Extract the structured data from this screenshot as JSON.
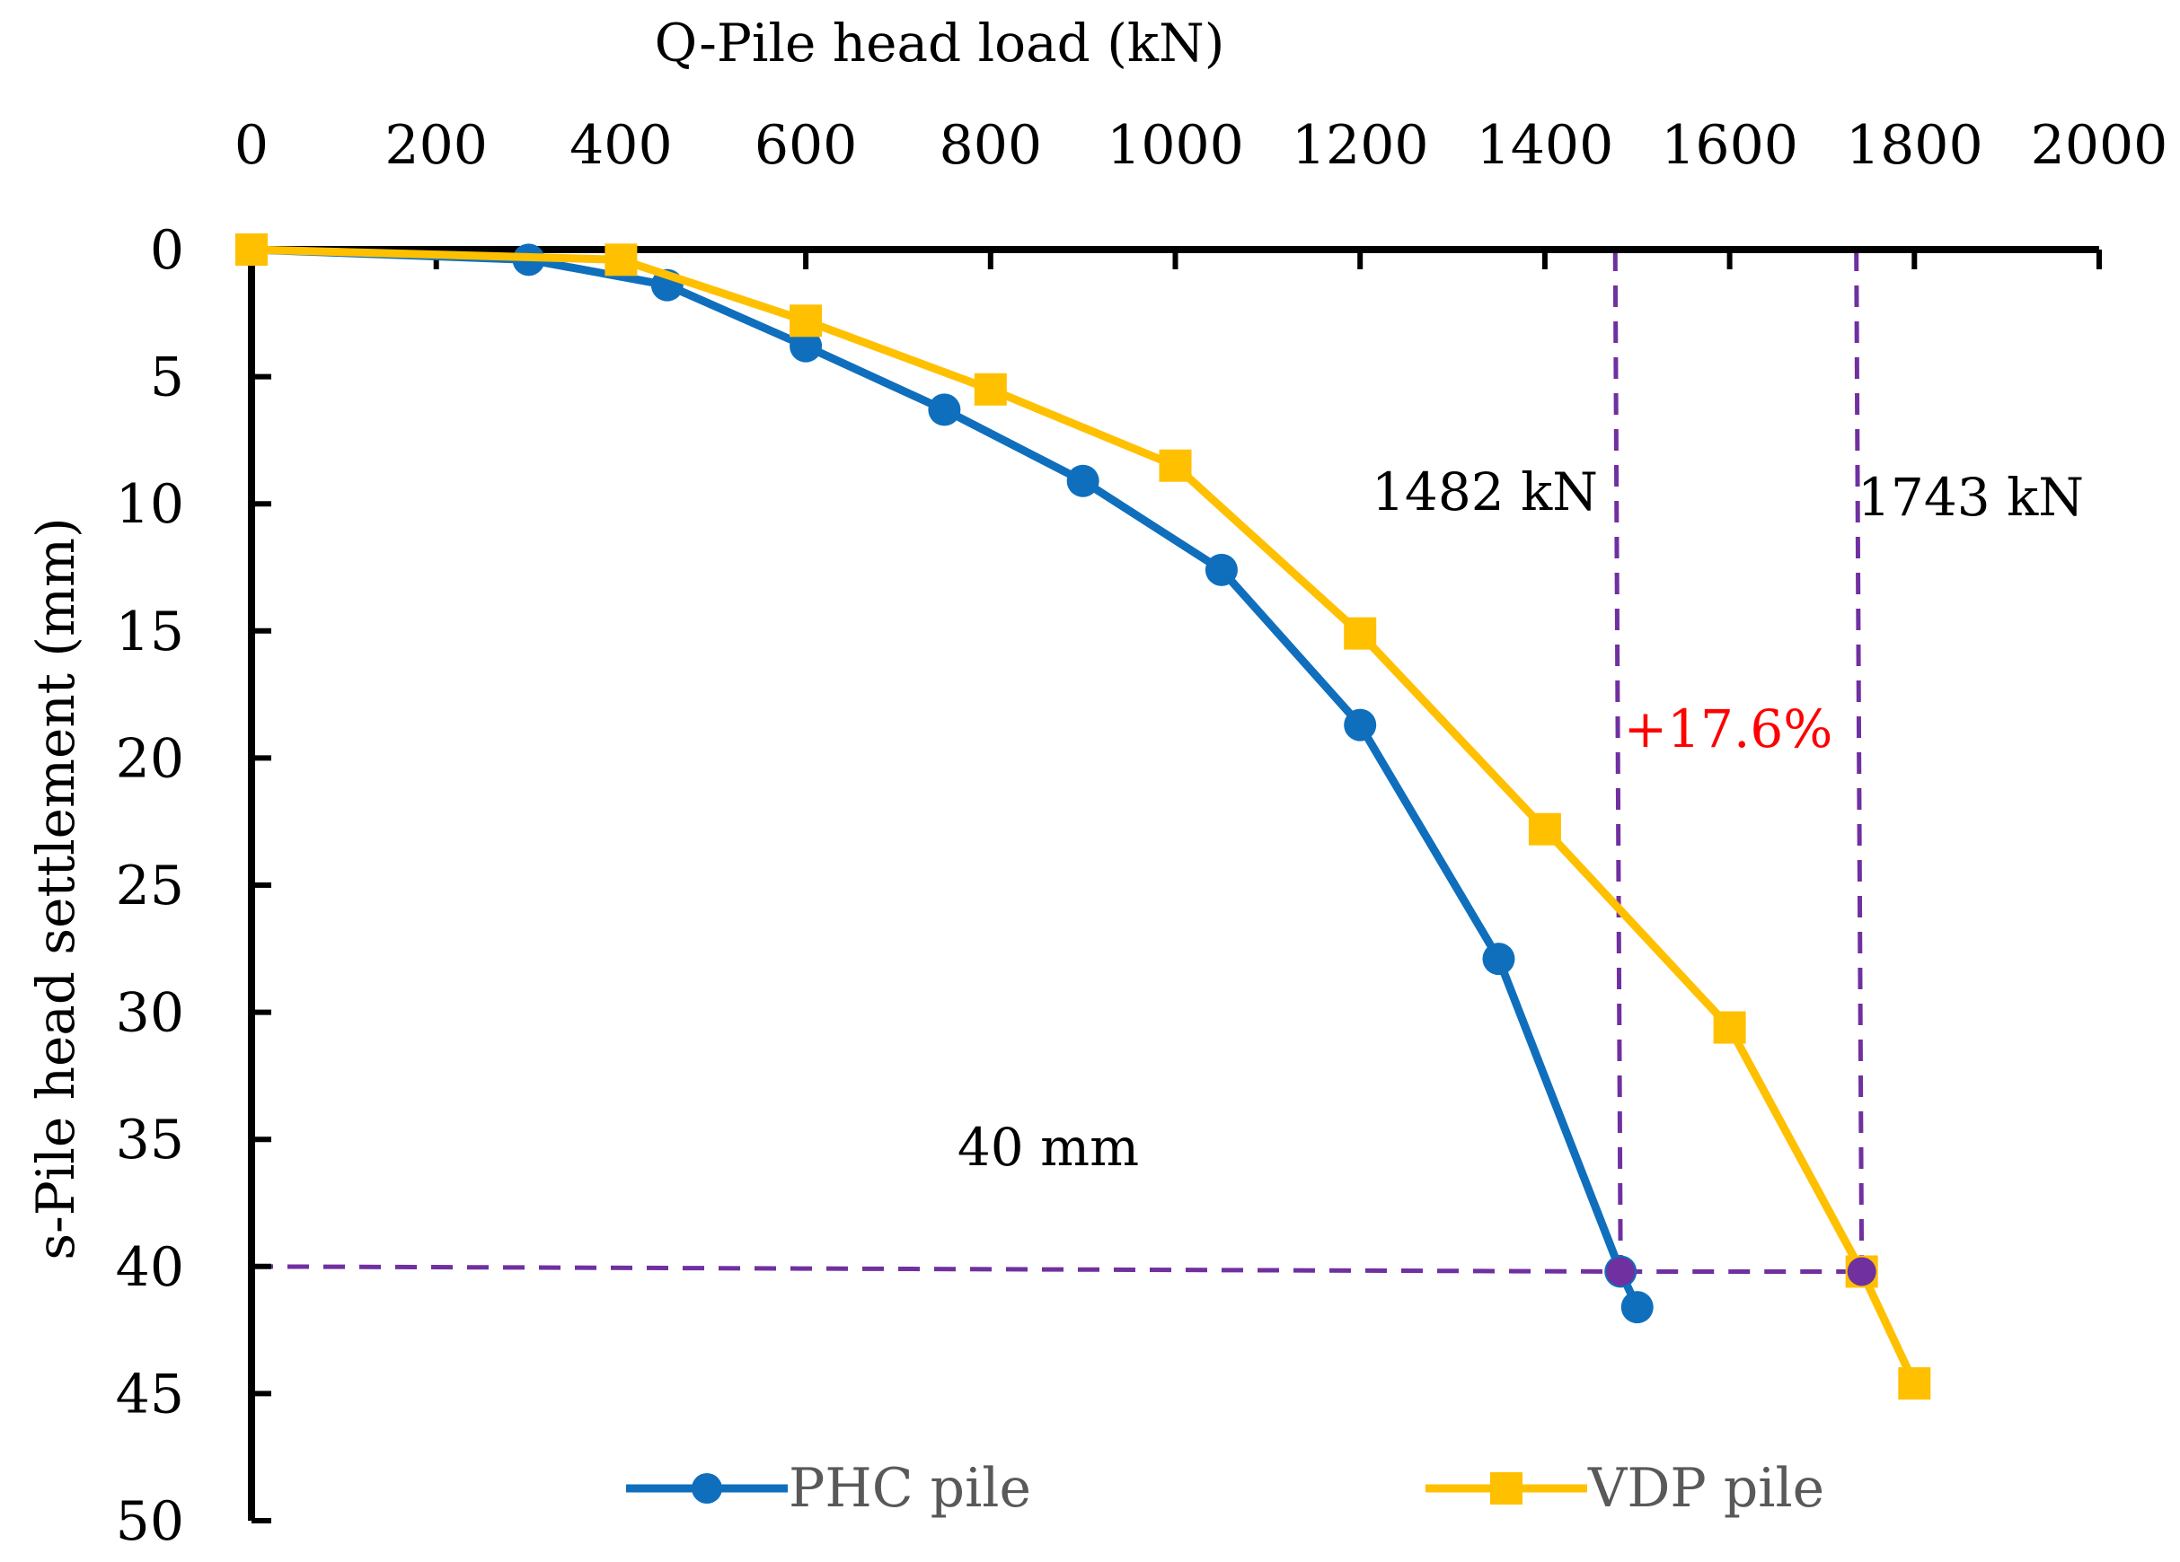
{
  "chart_data": {
    "type": "line",
    "x_axis_title": "Q-Pile head load (kN)",
    "y_axis_title": "s-Pile head settlement (mm)",
    "x_range": [
      0,
      2000
    ],
    "y_range": [
      0,
      50
    ],
    "y_inverted": true,
    "x_axis_position": "top",
    "x_ticks": [
      0,
      200,
      400,
      600,
      800,
      1000,
      1200,
      1400,
      1600,
      1800,
      2000
    ],
    "y_ticks": [
      0,
      5,
      10,
      15,
      20,
      25,
      30,
      35,
      40,
      45,
      50
    ],
    "grid": false,
    "legend_position": "bottom",
    "series": [
      {
        "name": "PHC pile",
        "color": "#0f6fbd",
        "marker": "circle",
        "points": [
          [
            0,
            0
          ],
          [
            300,
            0.4
          ],
          [
            450,
            1.4
          ],
          [
            600,
            3.8
          ],
          [
            750,
            6.3
          ],
          [
            900,
            9.1
          ],
          [
            1050,
            12.6
          ],
          [
            1200,
            18.7
          ],
          [
            1350,
            27.9
          ],
          [
            1482,
            40.2
          ],
          [
            1500,
            41.6
          ]
        ]
      },
      {
        "name": "VDP pile",
        "color": "#ffc000",
        "marker": "square",
        "points": [
          [
            0,
            0
          ],
          [
            400,
            0.4
          ],
          [
            600,
            2.8
          ],
          [
            800,
            5.5
          ],
          [
            1000,
            8.5
          ],
          [
            1200,
            15.1
          ],
          [
            1400,
            22.8
          ],
          [
            1600,
            30.6
          ],
          [
            1743,
            40.2
          ],
          [
            1800,
            44.6
          ]
        ]
      }
    ],
    "reference_lines": {
      "color": "#7030a0",
      "horizontal_settlement": 40,
      "vertical_loads": [
        1482,
        1743
      ],
      "intersection_points": [
        [
          1482,
          40.2
        ],
        [
          1743,
          40.2
        ]
      ]
    },
    "annotations": {
      "load_label_phc": "1482 kN",
      "load_label_vdp": "1743 kN",
      "increase_label": "+17.6%",
      "increase_color": "#ff0000",
      "settlement_label": "40 mm"
    }
  }
}
